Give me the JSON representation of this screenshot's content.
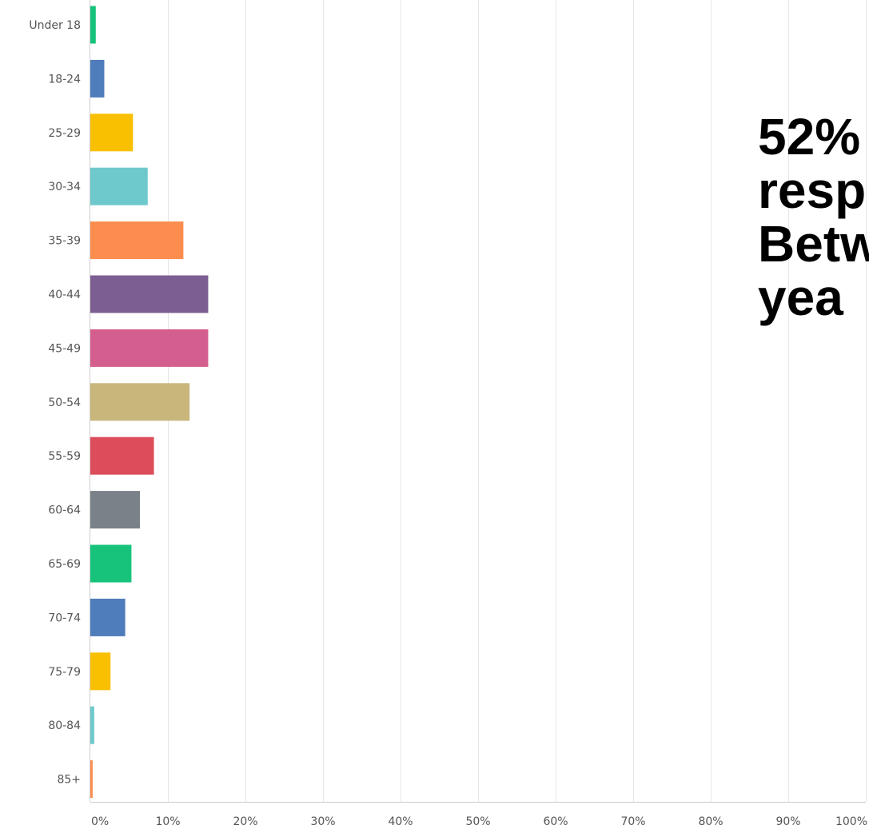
{
  "chart_data": {
    "type": "bar",
    "orientation": "horizontal",
    "categories": [
      "Under 18",
      "18-24",
      "25-29",
      "30-34",
      "35-39",
      "40-44",
      "45-49",
      "50-54",
      "55-59",
      "60-64",
      "65-69",
      "70-74",
      "75-79",
      "80-84",
      "85+"
    ],
    "values": [
      0.7,
      1.8,
      5.5,
      7.4,
      12.0,
      15.2,
      15.2,
      12.8,
      8.2,
      6.4,
      5.3,
      4.5,
      2.6,
      0.5,
      0.3
    ],
    "colors": [
      "#17c37b",
      "#4f7cba",
      "#f8c000",
      "#6ec9cc",
      "#fd8d4e",
      "#7d5e92",
      "#d45f8f",
      "#c8b67b",
      "#dc4c5a",
      "#7a8188",
      "#17c37b",
      "#4f7cba",
      "#f8c000",
      "#6ec9cc",
      "#fd8d4e"
    ],
    "xlim": [
      0,
      100
    ],
    "x_ticks": [
      "0%",
      "10%",
      "20%",
      "30%",
      "40%",
      "50%",
      "60%",
      "70%",
      "80%",
      "90%",
      "100%"
    ],
    "grid": true,
    "title": "",
    "xlabel": "",
    "ylabel": ""
  },
  "callout": {
    "lines": [
      "52%",
      "resp",
      "Betw",
      "yea"
    ]
  }
}
